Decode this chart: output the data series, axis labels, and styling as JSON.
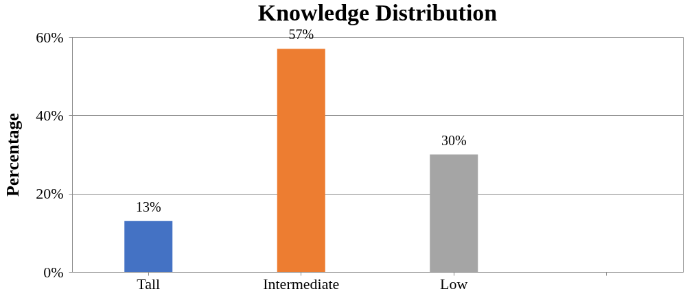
{
  "chart_data": {
    "type": "bar",
    "title": "Knowledge Distribution",
    "ylabel": "Percentage",
    "categories": [
      "Tall",
      "Intermediate",
      "Low",
      null
    ],
    "values": [
      13,
      57,
      30,
      null
    ],
    "colors": [
      "#4472c4",
      "#ed7d31",
      "#a5a5a5",
      null
    ],
    "value_labels": [
      "13%",
      "57%",
      "30%",
      null
    ],
    "ylim": [
      0,
      60
    ],
    "yticks": [
      {
        "value": 0,
        "label": "0%"
      },
      {
        "value": 20,
        "label": "20%"
      },
      {
        "value": 40,
        "label": "40%"
      },
      {
        "value": 60,
        "label": "60%"
      }
    ],
    "grid": "y"
  }
}
